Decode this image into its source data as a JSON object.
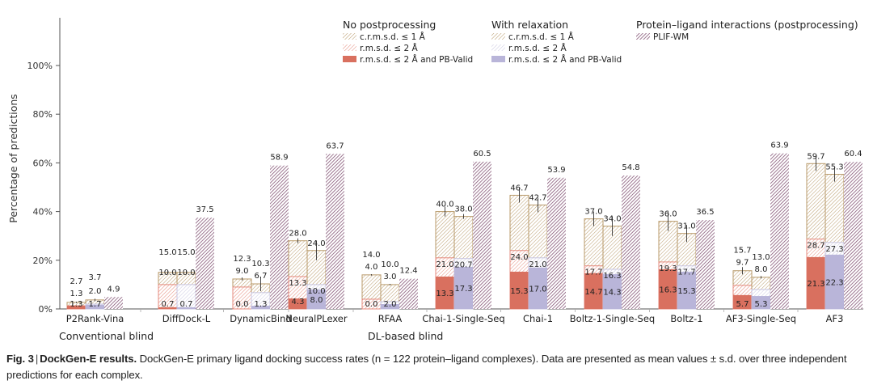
{
  "chart_data": {
    "type": "bar",
    "subtype": "grouped-stacked-overlay",
    "title": "",
    "xlabel": "",
    "ylabel": "Percentage of predictions",
    "ylim": [
      0,
      100
    ],
    "yticks": [
      "0%",
      "20%",
      "40%",
      "60%",
      "80%",
      "100%"
    ],
    "ytick_values": [
      0,
      20,
      40,
      60,
      80,
      100
    ],
    "grid": false,
    "legend_position": "top-right",
    "categories": [
      "P2Rank-Vina",
      "DiffDock-L",
      "DynamicBind",
      "NeuralPLexer",
      "RFAA",
      "Chai-1-Single-Seq",
      "Chai-1",
      "Boltz-1-Single-Seq",
      "Boltz-1",
      "AF3-Single-Seq",
      "AF3"
    ],
    "category_groups": [
      {
        "label": "Conventional blind",
        "members": [
          "P2Rank-Vina",
          "DiffDock-L",
          "DynamicBind",
          "NeuralPLexer"
        ]
      },
      {
        "label": "DL-based blind",
        "members": [
          "RFAA",
          "Chai-1-Single-Seq",
          "Chai-1",
          "Boltz-1-Single-Seq",
          "Boltz-1",
          "AF3-Single-Seq",
          "AF3"
        ]
      }
    ],
    "legend": [
      {
        "group": "No postprocessing",
        "items": [
          {
            "label": "c.r.m.s.d. ≤ 1 Å",
            "style": "hatch",
            "color": "#b89a6a"
          },
          {
            "label": "r.m.s.d. ≤ 2 Å",
            "style": "hatch",
            "color": "#e58a7c"
          },
          {
            "label": "r.m.s.d. ≤ 2 Å and PB-Valid",
            "style": "solid",
            "color": "#d9705f"
          }
        ]
      },
      {
        "group": "With relaxation",
        "items": [
          {
            "label": "c.r.m.s.d. ≤ 1 Å",
            "style": "hatch",
            "color": "#b89a6a"
          },
          {
            "label": "r.m.s.d. ≤ 2 Å",
            "style": "hatch",
            "color": "#c9c6e0"
          },
          {
            "label": "r.m.s.d. ≤ 2 Å and PB-Valid",
            "style": "solid",
            "color": "#b9b5d9"
          }
        ]
      },
      {
        "group": "Protein–ligand interactions (postprocessing)",
        "items": [
          {
            "label": "PLIF-WM",
            "style": "hatch",
            "color": "#7d4b6e"
          }
        ]
      }
    ],
    "series": [
      {
        "name": "No postprocessing: c.r.m.s.d. ≤ 1 Å",
        "values": [
          2.7,
          15.0,
          12.3,
          28.0,
          14.0,
          40.0,
          46.7,
          37.0,
          36.0,
          15.7,
          59.7
        ]
      },
      {
        "name": "No postprocessing: r.m.s.d. ≤ 2 Å",
        "values": [
          1.3,
          10.0,
          9.0,
          13.3,
          4.0,
          21.0,
          24.0,
          17.7,
          19.3,
          9.7,
          28.7
        ]
      },
      {
        "name": "No postprocessing: r.m.s.d. ≤ 2 Å and PB-Valid",
        "values": [
          1.3,
          0.7,
          0.0,
          4.3,
          0.0,
          13.3,
          15.3,
          14.7,
          16.3,
          5.7,
          21.3
        ]
      },
      {
        "name": "With relaxation: c.r.m.s.d. ≤ 1 Å",
        "values": [
          3.7,
          15.0,
          10.3,
          24.0,
          10.0,
          38.0,
          42.7,
          34.0,
          31.0,
          13.0,
          55.3
        ]
      },
      {
        "name": "With relaxation: r.m.s.d. ≤ 2 Å",
        "values": [
          2.0,
          10.0,
          6.7,
          10.0,
          3.0,
          20.7,
          21.0,
          16.3,
          17.7,
          8.0,
          27.3
        ]
      },
      {
        "name": "With relaxation: r.m.s.d. ≤ 2 Å and PB-Valid",
        "values": [
          1.7,
          0.7,
          1.3,
          8.0,
          2.0,
          17.3,
          17.0,
          14.3,
          15.3,
          5.3,
          22.3
        ]
      },
      {
        "name": "PLIF-WM",
        "values": [
          4.9,
          37.5,
          58.9,
          63.7,
          12.4,
          60.5,
          53.9,
          54.8,
          36.5,
          63.9,
          60.4
        ]
      }
    ],
    "label_texts": {
      "np_c": [
        "2.7",
        "15.0",
        "12.3",
        "28.0",
        "14.0",
        "40.0",
        "46.7",
        "37.0",
        "36.0",
        "15.7",
        "59.7"
      ],
      "np_r": [
        "1.3",
        "10.0",
        "9.0",
        "13.3",
        "4.0",
        "21.0",
        "24.0",
        "17.7",
        "19.3",
        "9.7",
        "28.7"
      ],
      "np_pb": [
        "1.3",
        "0.7",
        "0.0",
        "4.3",
        "0.0",
        "13.3",
        "15.3",
        "14.7",
        "16.3",
        "5.7",
        "21.3"
      ],
      "wr_c": [
        "3.7",
        "15.0",
        "10.3",
        "24.0",
        "10.0",
        "38.0",
        "42.7",
        "34.0",
        "31.0",
        "13.0",
        "55.3"
      ],
      "wr_r": [
        "2.0",
        "10.0",
        "6.7",
        "10.0",
        "3.0",
        "20.7",
        "21.0",
        "16.3",
        "17.7",
        "8.0",
        "27.3"
      ],
      "wr_pb": [
        "1.7",
        "0.7",
        "1.3",
        "8.0",
        "2.0",
        "17.3",
        "17.0",
        "14.3",
        "15.3",
        "5.3",
        "22.3"
      ],
      "plif": [
        "4.9",
        "37.5",
        "58.9",
        "63.7",
        "12.4",
        "60.5",
        "53.9",
        "54.8",
        "36.5",
        "63.9",
        "60.4"
      ]
    },
    "error_bars_sd": {
      "np_c": [
        0.3,
        0.5,
        0.6,
        1.0,
        0.3,
        2.0,
        3.0,
        3.0,
        4.0,
        1.5,
        3.0
      ],
      "wr_c": [
        0.5,
        0.5,
        3.0,
        4.0,
        0.3,
        1.0,
        3.0,
        4.0,
        3.5,
        0.5,
        3.0
      ]
    },
    "colors": {
      "np_c": "#b89a6a",
      "np_r": "#e58a7c",
      "np_pb": "#d9705f",
      "wr_c": "#b89a6a",
      "wr_r": "#c9c6e0",
      "wr_pb": "#b9b5d9",
      "plif": "#7d4b6e",
      "axis": "#555555"
    }
  },
  "caption": {
    "fig_label": "Fig. 3",
    "separator": "|",
    "title": "DockGen-E results.",
    "text": " DockGen-E primary ligand docking success rates (n = 122 protein–ligand complexes). Data are presented as mean values ± s.d. over three independent predictions for each complex."
  }
}
